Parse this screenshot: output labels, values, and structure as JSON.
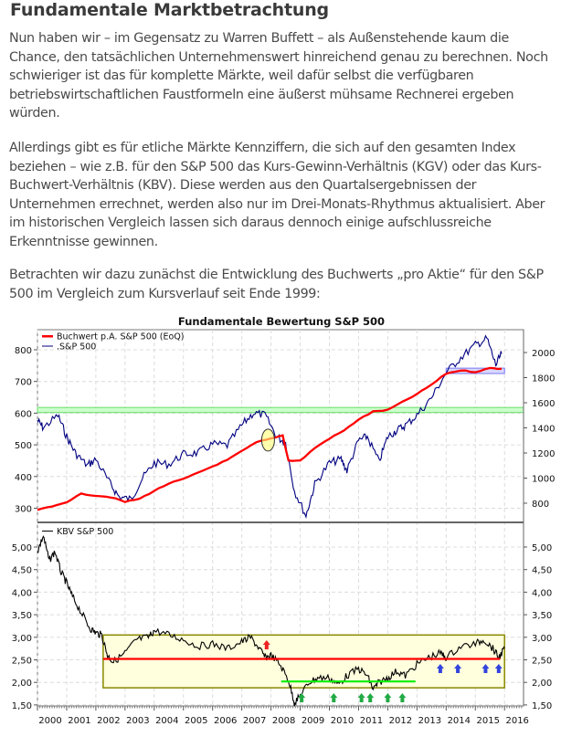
{
  "article": {
    "title": "Fundamentale Marktbetrachtung",
    "paragraphs": [
      "Nun haben wir – im Gegensatz zu Warren Buffett – als Außenstehende kaum die Chance, den tatsächlichen Unternehmenswert hinreichend genau zu berechnen. Noch schwieriger ist das für komplette Märkte, weil dafür selbst die verfügbaren betriebswirtschaftlichen Faustformeln eine äußerst mühsame Rechnerei ergeben würden.",
      "Allerdings gibt es für etliche Märkte Kennziffern, die sich auf den gesamten Index beziehen – wie z.B. für den S&P 500 das Kurs-Gewinn-Verhältnis (KGV) oder das Kurs-Buchwert-Verhältnis (KBV). Diese werden aus den Quartalsergebnissen der Unternehmen errechnet, werden also nur im Drei-Monats-Rhythmus aktualisiert. Aber im historischen Vergleich lassen sich daraus dennoch einige aufschlussreiche Erkenntnisse gewinnen.",
      "Betrachten wir dazu zunächst die Entwicklung des Buchwerts „pro Aktie“ für den S&P 500 im Vergleich zum Kursverlauf seit Ende 1999:"
    ]
  },
  "chart_data": [
    {
      "type": "line",
      "title": "Fundamentale Bewertung S&P 500",
      "legend_position": "top-left",
      "grid": true,
      "x_ticks": [
        "2000",
        "2001",
        "2002",
        "2003",
        "2004",
        "2005",
        "2006",
        "2007",
        "2008",
        "2009",
        "2010",
        "2011",
        "2012",
        "2013",
        "2014",
        "2015",
        "2016"
      ],
      "y_left": {
        "ticks": [
          300,
          400,
          500,
          600,
          700,
          800
        ],
        "range": [
          250,
          830
        ]
      },
      "y_right": {
        "ticks": [
          800,
          1000,
          1200,
          1400,
          1600,
          1800,
          2000
        ],
        "range": [
          650,
          2120
        ]
      },
      "series": [
        {
          "name": "Buchwert p.A. S&P 500 (EoQ)",
          "color": "#ff0000",
          "axis": "left",
          "x": [
            2000.0,
            2000.5,
            2001.0,
            2001.5,
            2002.0,
            2002.5,
            2003.0,
            2003.5,
            2004.0,
            2004.5,
            2005.0,
            2005.5,
            2006.0,
            2006.5,
            2007.0,
            2007.5,
            2008.0,
            2008.4,
            2008.6,
            2009.0,
            2009.5,
            2010.0,
            2010.5,
            2011.0,
            2011.5,
            2012.0,
            2012.5,
            2013.0,
            2013.5,
            2014.0,
            2014.5,
            2015.0,
            2015.5,
            2015.9
          ],
          "values": [
            295,
            305,
            320,
            345,
            340,
            335,
            320,
            330,
            355,
            378,
            392,
            412,
            432,
            452,
            480,
            508,
            520,
            530,
            450,
            450,
            490,
            520,
            545,
            580,
            605,
            610,
            635,
            660,
            690,
            725,
            735,
            730,
            742,
            740
          ]
        },
        {
          "name": ".S&P 500",
          "color": "#000080",
          "axis": "right",
          "x": [
            2000.0,
            2000.2,
            2000.7,
            2001.0,
            2001.3,
            2001.7,
            2002.0,
            2002.5,
            2002.8,
            2003.2,
            2003.6,
            2004.0,
            2004.5,
            2005.0,
            2005.5,
            2006.0,
            2006.5,
            2007.0,
            2007.4,
            2007.8,
            2008.2,
            2008.5,
            2008.8,
            2009.2,
            2009.5,
            2010.0,
            2010.4,
            2010.6,
            2011.0,
            2011.3,
            2011.7,
            2012.0,
            2012.3,
            2012.6,
            2013.0,
            2013.5,
            2014.0,
            2014.5,
            2015.0,
            2015.4,
            2015.7,
            2015.9
          ],
          "values": [
            1460,
            1400,
            1500,
            1330,
            1200,
            1100,
            1150,
            950,
            850,
            830,
            1000,
            1120,
            1110,
            1190,
            1200,
            1270,
            1260,
            1420,
            1520,
            1500,
            1330,
            1280,
            900,
            700,
            950,
            1120,
            1150,
            1060,
            1300,
            1330,
            1130,
            1330,
            1380,
            1420,
            1500,
            1640,
            1840,
            1960,
            2060,
            2110,
            1900,
            1990
          ]
        }
      ],
      "annotations": [
        {
          "type": "band",
          "color": "#90ee90",
          "left_range": [
            602,
            618
          ],
          "note": "green horizontal band ~600"
        },
        {
          "type": "band",
          "color": "#b0b0ff",
          "x_range": [
            2014.0,
            2016.0
          ],
          "left_range": [
            725,
            742
          ],
          "note": "blue band ~1850"
        },
        {
          "type": "ellipse",
          "color": "#ffff80",
          "x": 2007.9,
          "left_value": 515,
          "note": "highlighted crossing"
        }
      ]
    },
    {
      "type": "line",
      "title": "",
      "legend_position": "top-left",
      "grid": true,
      "x_ticks": [
        "2000",
        "2001",
        "2002",
        "2003",
        "2004",
        "2005",
        "2006",
        "2007",
        "2008",
        "2009",
        "2010",
        "2011",
        "2012",
        "2013",
        "2014",
        "2015",
        "2016"
      ],
      "y_right": {
        "ticks": [
          "1,50",
          "2,00",
          "2,50",
          "3,00",
          "3,50",
          "4,00",
          "4,50",
          "5,00"
        ],
        "range": [
          1.5,
          5.3
        ]
      },
      "series": [
        {
          "name": "KBV S&P 500",
          "color": "#000000",
          "x": [
            2000.0,
            2000.2,
            2000.4,
            2000.6,
            2000.8,
            2001.0,
            2001.2,
            2001.5,
            2001.8,
            2002.0,
            2002.2,
            2002.4,
            2002.6,
            2003.0,
            2003.4,
            2003.8,
            2004.0,
            2004.5,
            2005.0,
            2005.5,
            2006.0,
            2006.5,
            2007.0,
            2007.3,
            2007.6,
            2007.8,
            2008.0,
            2008.3,
            2008.6,
            2008.8,
            2009.0,
            2009.3,
            2009.6,
            2010.0,
            2010.3,
            2010.6,
            2011.0,
            2011.3,
            2011.5,
            2011.7,
            2012.0,
            2012.3,
            2012.6,
            2013.0,
            2013.4,
            2013.8,
            2014.0,
            2014.5,
            2015.0,
            2015.3,
            2015.6,
            2015.8,
            2016.0
          ],
          "values": [
            4.9,
            5.25,
            4.7,
            4.9,
            4.45,
            4.2,
            3.9,
            3.55,
            3.2,
            3.1,
            3.05,
            2.6,
            2.45,
            2.65,
            2.95,
            3.0,
            3.15,
            3.05,
            2.95,
            2.8,
            2.85,
            2.75,
            2.9,
            3.0,
            2.75,
            2.55,
            2.6,
            2.4,
            2.05,
            1.55,
            1.7,
            2.0,
            2.1,
            2.1,
            1.95,
            2.15,
            2.3,
            2.15,
            1.85,
            2.0,
            2.1,
            2.25,
            2.15,
            2.4,
            2.55,
            2.65,
            2.55,
            2.8,
            2.85,
            2.95,
            2.75,
            2.55,
            2.75
          ]
        }
      ],
      "annotations": [
        {
          "type": "box",
          "color": "#ffffdd",
          "x_range": [
            2002.25,
            2016.0
          ],
          "y_range": [
            1.88,
            3.05
          ]
        },
        {
          "type": "hline",
          "color": "#ff0000",
          "y": 2.52,
          "x_range": [
            2002.25,
            2015.85
          ]
        },
        {
          "type": "hline",
          "color": "#00ee00",
          "y": 2.02,
          "x_range": [
            2008.35,
            2012.95
          ]
        },
        {
          "type": "arrows_up",
          "color": "#ee2222",
          "x": [
            2007.85
          ]
        },
        {
          "type": "arrows_up",
          "color": "#22aa44",
          "x": [
            2009.05,
            2010.15,
            2011.1,
            2011.4,
            2012.0,
            2012.5
          ]
        },
        {
          "type": "arrows_up",
          "color": "#3344dd",
          "x": [
            2013.8,
            2014.4,
            2015.35,
            2015.8
          ]
        }
      ]
    }
  ],
  "chart": {
    "title": "Fundamentale Bewertung S&P 500",
    "legend_top": [
      {
        "label": "Buchwert p.A. S&P 500 (EoQ)",
        "color": "#ff0000"
      },
      {
        "label": ".S&P 500",
        "color": "#000080"
      }
    ],
    "legend_bottom": [
      {
        "label": "KBV S&P 500",
        "color": "#000000"
      }
    ],
    "x_ticks": [
      "2000",
      "2001",
      "2002",
      "2003",
      "2004",
      "2005",
      "2006",
      "2007",
      "2008",
      "2009",
      "2010",
      "2011",
      "2012",
      "2013",
      "2014",
      "2015",
      "2016"
    ],
    "left_ticks_top": [
      "800",
      "700",
      "600",
      "500",
      "400",
      "300"
    ],
    "right_ticks_top": [
      "2000",
      "1800",
      "1600",
      "1400",
      "1200",
      "1000",
      "800"
    ],
    "left_ticks_bottom": [
      "5,00",
      "4,50",
      "4,00",
      "3,50",
      "3,00",
      "2,50",
      "2,00",
      "1,50"
    ],
    "right_ticks_bottom": [
      "5,00",
      "4,50",
      "4,00",
      "3,50",
      "3,00",
      "2,50",
      "2,00",
      "1,50"
    ]
  }
}
